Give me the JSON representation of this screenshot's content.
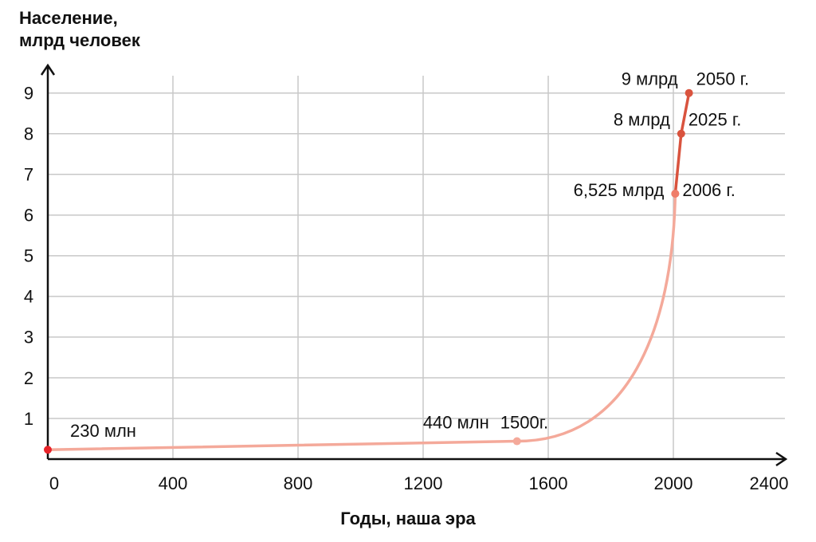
{
  "chart_data": {
    "type": "line",
    "ylabel": [
      "Население,",
      "млрд человек"
    ],
    "xlabel": "Годы, наша эра",
    "xlim": [
      0,
      2400
    ],
    "xticks": [
      0,
      400,
      800,
      1200,
      1600,
      2000,
      2400
    ],
    "ylim": [
      0,
      9.7
    ],
    "yticks": [
      1,
      2,
      3,
      4,
      5,
      6,
      7,
      8,
      9
    ],
    "grid": true,
    "series": [
      {
        "color": "#f4a99a",
        "x": [
          0,
          1500,
          2006
        ],
        "values": [
          0.23,
          0.44,
          6.525
        ],
        "point_colors": [
          "#e8242a",
          "#f4a99a",
          "#ef7d6a"
        ],
        "value_labels": [
          "230 млн",
          "440 млн",
          null
        ],
        "x_labels": [
          null,
          "1500г.",
          null
        ]
      },
      {
        "color": "#d9533e",
        "x": [
          2006,
          2025,
          2050
        ],
        "values": [
          6.525,
          8,
          9
        ],
        "point_colors": [
          "#ef7d6a",
          "#d9533e",
          "#d9533e"
        ],
        "value_labels": [
          "6,525 млрд",
          "8 млрд",
          "9 млрд"
        ],
        "x_labels": [
          "2006 г.",
          "2025 г.",
          "2050 г."
        ]
      }
    ]
  }
}
